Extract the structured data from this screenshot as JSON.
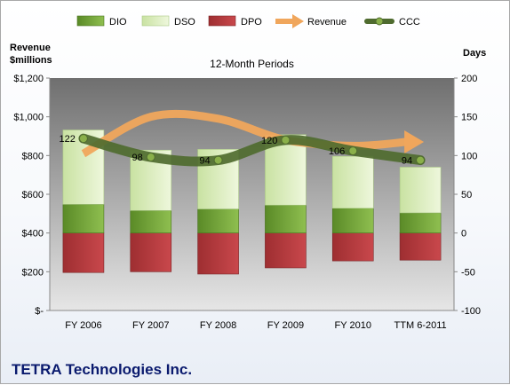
{
  "company": "TETRA Technologies Inc.",
  "chart_data": {
    "type": "bar",
    "title": "12-Month Periods",
    "left_axis_label": [
      "Revenue",
      "$millions"
    ],
    "right_axis_label": "Days",
    "left_axis": {
      "min": 0,
      "max": 1200,
      "step": 200,
      "tick_labels": [
        "$-",
        "$200",
        "$400",
        "$600",
        "$800",
        "$1,000",
        "$1,200"
      ]
    },
    "right_axis": {
      "min": -100,
      "max": 200,
      "step": 50,
      "tick_labels": [
        "-100",
        "-50",
        "0",
        "50",
        "100",
        "150",
        "200"
      ]
    },
    "categories": [
      "FY 2006",
      "FY 2007",
      "FY 2008",
      "FY 2009",
      "FY 2010",
      "TTM 6-2011"
    ],
    "legend": [
      "DIO",
      "DSO",
      "DPO",
      "Revenue",
      "CCC"
    ],
    "legend_position": "top",
    "series": [
      {
        "name": "DIO",
        "axis": "right",
        "values": [
          37,
          29,
          31,
          36,
          32,
          26
        ],
        "color": "#70a035"
      },
      {
        "name": "DSO",
        "axis": "right",
        "values": [
          96,
          78,
          77,
          91,
          67,
          59
        ],
        "color": "#d8ecb8"
      },
      {
        "name": "DPO",
        "axis": "right",
        "values": [
          -51,
          -50,
          -53,
          -45,
          -36,
          -35
        ],
        "color": "#b3373b"
      },
      {
        "name": "Revenue",
        "axis": "left",
        "values": [
          810,
          1000,
          990,
          880,
          850,
          870
        ],
        "color": "#f0a65c"
      },
      {
        "name": "CCC",
        "axis": "right",
        "values": [
          122,
          98,
          94,
          120,
          106,
          94
        ],
        "color": "#4f6b2f"
      }
    ],
    "ccc_labels": [
      "122",
      "98",
      "94",
      "120",
      "106",
      "94"
    ],
    "grid": false
  }
}
